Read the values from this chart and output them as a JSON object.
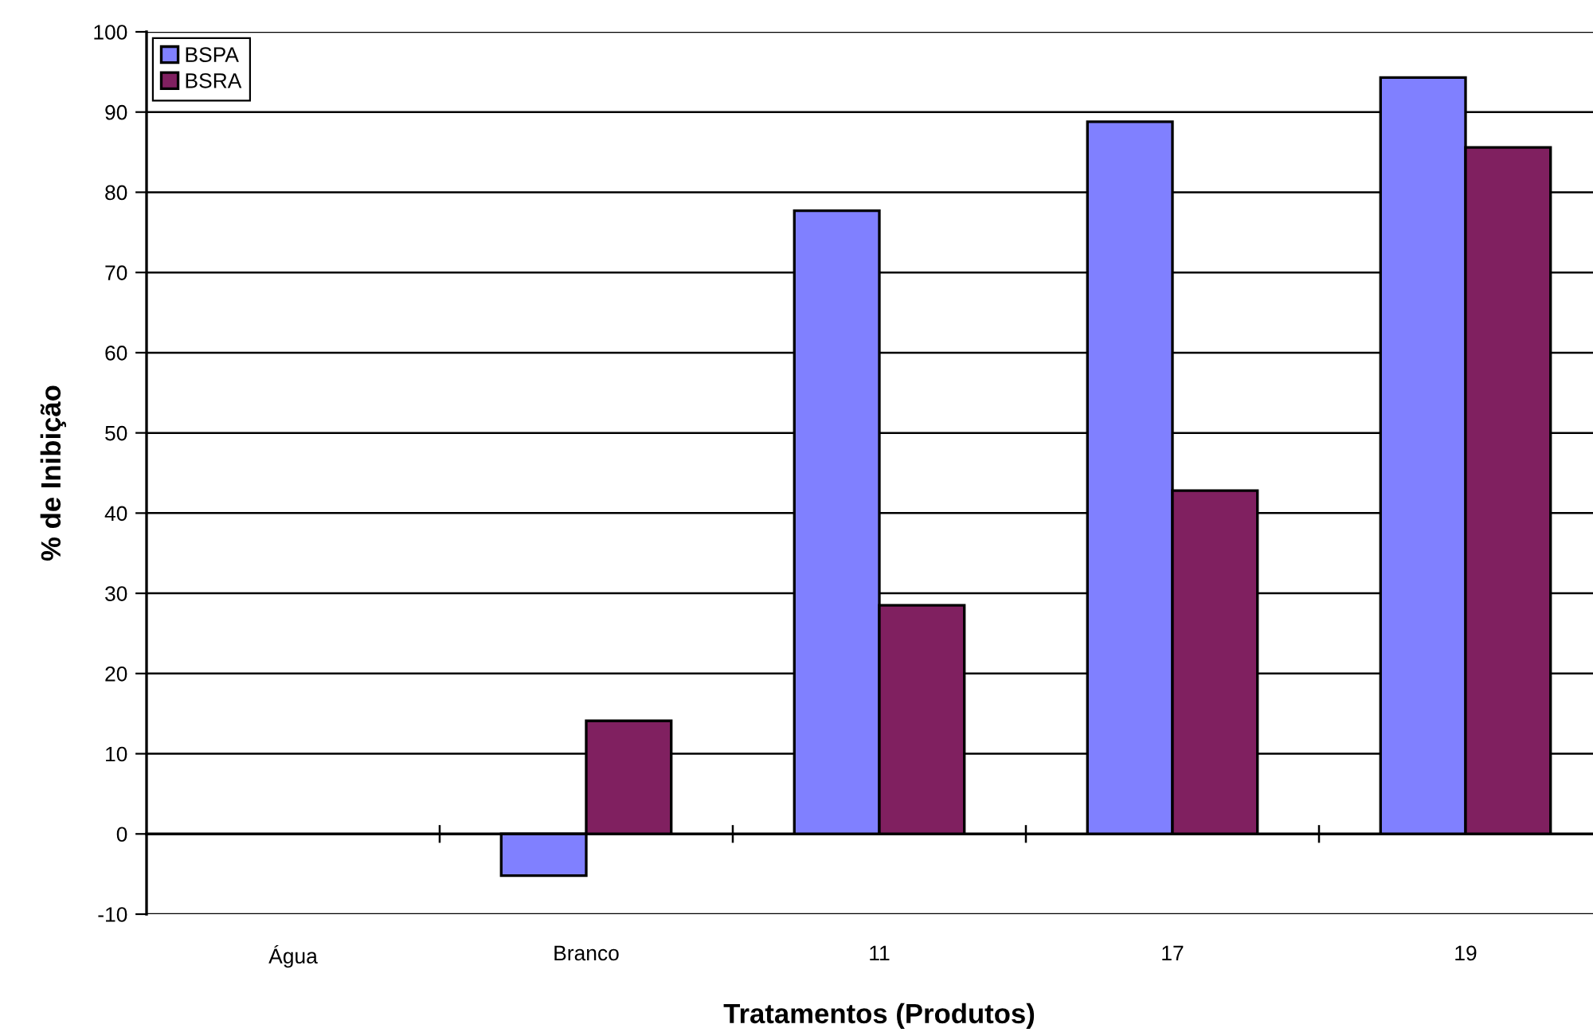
{
  "chart_data": {
    "type": "bar",
    "xlabel": "Tratamentos (Produtos)",
    "ylabel": "% de Inibição",
    "categories": [
      "Água",
      "Branco",
      "11",
      "17",
      "19"
    ],
    "series": [
      {
        "name": "BSPA",
        "color": "#8080ff",
        "values": [
          null,
          -5.2,
          77.7,
          88.8,
          94.3
        ]
      },
      {
        "name": "BSRA",
        "color": "#802060",
        "values": [
          null,
          14.1,
          28.5,
          42.8,
          85.6
        ]
      }
    ],
    "ylim": [
      -10,
      100
    ],
    "yticks": [
      -10,
      0,
      10,
      20,
      30,
      40,
      50,
      60,
      70,
      80,
      90,
      100
    ],
    "grid": "y",
    "legend": "top left"
  }
}
